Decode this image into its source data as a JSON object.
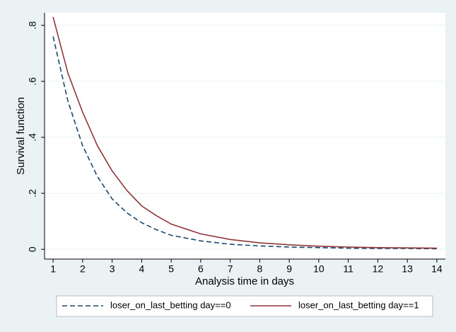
{
  "chart_data": {
    "type": "line",
    "xlabel": "Analysis time in days",
    "ylabel": "Survival function",
    "x": [
      1,
      1.5,
      2,
      2.5,
      3,
      3.5,
      4,
      4.5,
      5,
      6,
      7,
      8,
      9,
      10,
      11,
      12,
      13,
      14
    ],
    "series": [
      {
        "name": "loser_on_last_betting day==0",
        "color": "#1a476f",
        "style": "dashed",
        "values": [
          0.76,
          0.53,
          0.37,
          0.26,
          0.18,
          0.13,
          0.095,
          0.07,
          0.05,
          0.03,
          0.018,
          0.012,
          0.008,
          0.006,
          0.004,
          0.003,
          0.003,
          0.002
        ]
      },
      {
        "name": "loser_on_last_betting day==1",
        "color": "#90353b",
        "style": "solid",
        "values": [
          0.83,
          0.63,
          0.49,
          0.37,
          0.28,
          0.21,
          0.155,
          0.12,
          0.09,
          0.055,
          0.035,
          0.023,
          0.016,
          0.011,
          0.008,
          0.006,
          0.005,
          0.004
        ]
      }
    ],
    "xlim": [
      0.71,
      14.29
    ],
    "xticks": [
      1,
      2,
      3,
      4,
      5,
      6,
      7,
      8,
      9,
      10,
      11,
      12,
      13,
      14
    ],
    "ylim": [
      -0.035,
      0.845
    ],
    "yticks": [
      0,
      {
        "value": 0.2,
        "label": ".2"
      },
      {
        "value": 0.4,
        "label": ".4"
      },
      {
        "value": 0.6,
        "label": ".6"
      },
      {
        "value": 0.8,
        "label": ".8"
      }
    ],
    "grid": true,
    "legend": "bottom"
  }
}
